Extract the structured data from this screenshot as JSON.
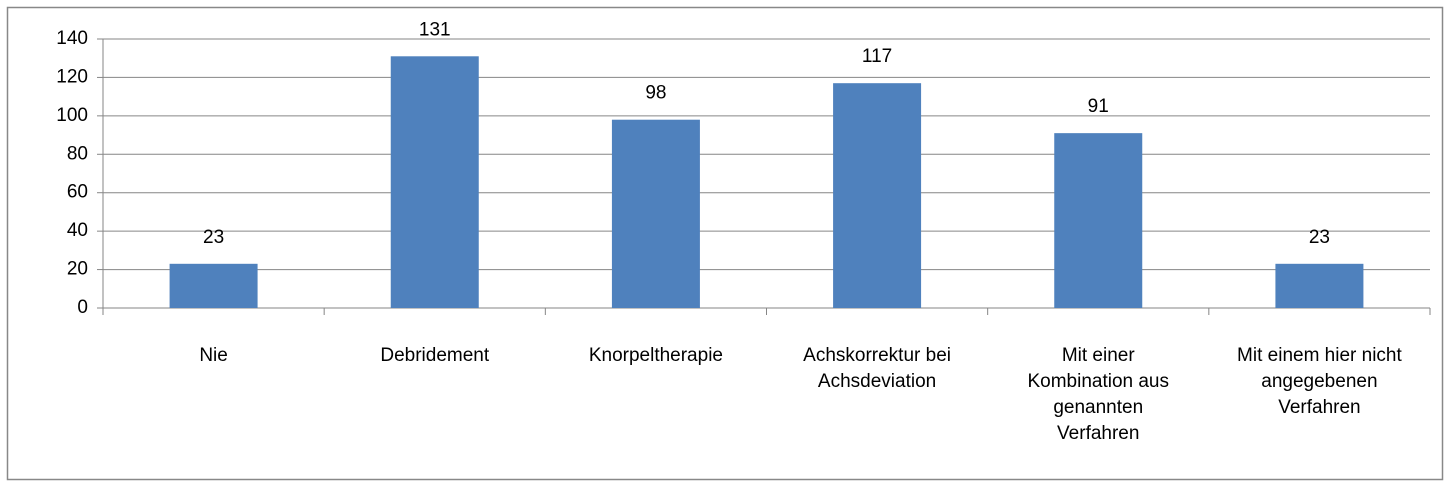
{
  "chart_data": {
    "type": "bar",
    "categories": [
      "Nie",
      "Debridement",
      "Knorpeltherapie",
      "Achskorrektur bei Achsdeviation",
      "Mit einer Kombination aus genannten Verfahren",
      "Mit einem hier nicht angegebenen Verfahren"
    ],
    "values": [
      23,
      131,
      98,
      117,
      91,
      23
    ],
    "color": "#4f81bd",
    "ylim": [
      0,
      140
    ],
    "yticks": [
      0,
      20,
      40,
      60,
      80,
      100,
      120,
      140
    ],
    "grid": true,
    "data_labels": true
  }
}
